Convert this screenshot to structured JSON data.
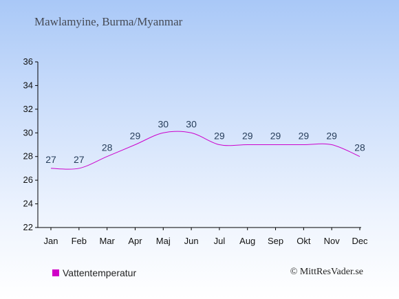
{
  "title": "Mawlamyine, Burma/Myanmar",
  "credit": "© MittResVader.se",
  "colors": {
    "series": "#cc00cc",
    "axis": "#000000",
    "label": "#263d5a"
  },
  "chart_data": {
    "type": "line",
    "categories": [
      "Jan",
      "Feb",
      "Mar",
      "Apr",
      "Maj",
      "Jun",
      "Jul",
      "Aug",
      "Sep",
      "Okt",
      "Nov",
      "Dec"
    ],
    "series": [
      {
        "name": "Vattentemperatur",
        "values": [
          27,
          27,
          28,
          29,
          30,
          30,
          29,
          29,
          29,
          29,
          29,
          28
        ]
      }
    ],
    "ylim": [
      22,
      36
    ],
    "yticks": [
      22,
      24,
      26,
      28,
      30,
      32,
      34,
      36
    ],
    "grid": false,
    "legend": "bottom-left",
    "data_labels": true
  }
}
